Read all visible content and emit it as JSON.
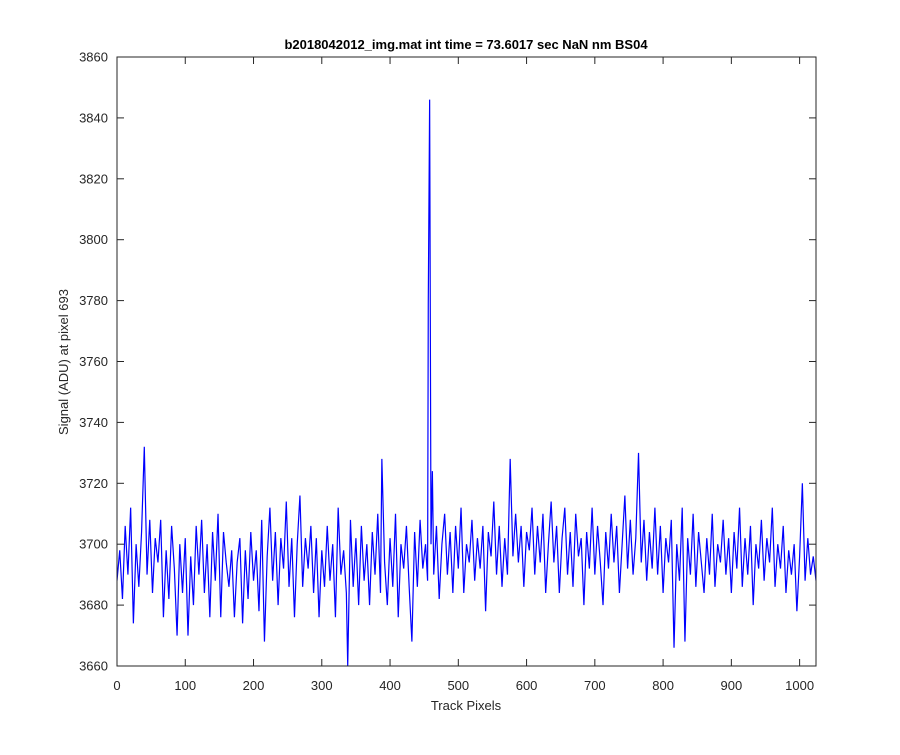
{
  "chart_data": {
    "type": "line",
    "title": "b2018042012_img.mat int time = 73.6017 sec  NaN nm BS04",
    "xlabel": "Track Pixels",
    "ylabel": "Signal (ADU) at pixel 693",
    "xlim": [
      0,
      1024
    ],
    "ylim": [
      3660,
      3860
    ],
    "xticks": [
      0,
      100,
      200,
      300,
      400,
      500,
      600,
      700,
      800,
      900,
      1000
    ],
    "yticks": [
      3660,
      3680,
      3700,
      3720,
      3740,
      3760,
      3780,
      3800,
      3820,
      3840,
      3860
    ],
    "grid": false,
    "legend": "none",
    "line_color": "#0000ff",
    "series": [
      {
        "points": [
          [
            0,
            3688
          ],
          [
            4,
            3698
          ],
          [
            8,
            3682
          ],
          [
            12,
            3706
          ],
          [
            16,
            3690
          ],
          [
            20,
            3712
          ],
          [
            24,
            3674
          ],
          [
            28,
            3700
          ],
          [
            32,
            3686
          ],
          [
            36,
            3704
          ],
          [
            40,
            3732
          ],
          [
            44,
            3690
          ],
          [
            48,
            3708
          ],
          [
            52,
            3684
          ],
          [
            56,
            3702
          ],
          [
            60,
            3694
          ],
          [
            64,
            3708
          ],
          [
            68,
            3676
          ],
          [
            72,
            3698
          ],
          [
            76,
            3682
          ],
          [
            80,
            3706
          ],
          [
            84,
            3692
          ],
          [
            88,
            3670
          ],
          [
            92,
            3700
          ],
          [
            96,
            3684
          ],
          [
            100,
            3702
          ],
          [
            104,
            3670
          ],
          [
            108,
            3696
          ],
          [
            112,
            3680
          ],
          [
            116,
            3706
          ],
          [
            120,
            3690
          ],
          [
            124,
            3708
          ],
          [
            128,
            3684
          ],
          [
            132,
            3700
          ],
          [
            136,
            3676
          ],
          [
            140,
            3704
          ],
          [
            144,
            3688
          ],
          [
            148,
            3710
          ],
          [
            152,
            3676
          ],
          [
            156,
            3704
          ],
          [
            160,
            3694
          ],
          [
            164,
            3686
          ],
          [
            168,
            3698
          ],
          [
            172,
            3676
          ],
          [
            176,
            3694
          ],
          [
            180,
            3702
          ],
          [
            184,
            3674
          ],
          [
            188,
            3698
          ],
          [
            192,
            3682
          ],
          [
            196,
            3704
          ],
          [
            200,
            3688
          ],
          [
            204,
            3698
          ],
          [
            208,
            3678
          ],
          [
            212,
            3708
          ],
          [
            216,
            3668
          ],
          [
            220,
            3696
          ],
          [
            224,
            3712
          ],
          [
            228,
            3688
          ],
          [
            232,
            3704
          ],
          [
            236,
            3680
          ],
          [
            240,
            3702
          ],
          [
            244,
            3692
          ],
          [
            248,
            3714
          ],
          [
            252,
            3686
          ],
          [
            256,
            3702
          ],
          [
            260,
            3676
          ],
          [
            264,
            3700
          ],
          [
            268,
            3716
          ],
          [
            272,
            3686
          ],
          [
            276,
            3702
          ],
          [
            280,
            3692
          ],
          [
            284,
            3706
          ],
          [
            288,
            3684
          ],
          [
            292,
            3702
          ],
          [
            296,
            3676
          ],
          [
            300,
            3698
          ],
          [
            304,
            3686
          ],
          [
            308,
            3706
          ],
          [
            312,
            3688
          ],
          [
            316,
            3700
          ],
          [
            320,
            3676
          ],
          [
            324,
            3712
          ],
          [
            328,
            3690
          ],
          [
            332,
            3698
          ],
          [
            336,
            3684
          ],
          [
            338,
            3660
          ],
          [
            342,
            3708
          ],
          [
            346,
            3686
          ],
          [
            350,
            3702
          ],
          [
            354,
            3680
          ],
          [
            358,
            3706
          ],
          [
            362,
            3688
          ],
          [
            366,
            3700
          ],
          [
            370,
            3680
          ],
          [
            374,
            3704
          ],
          [
            378,
            3690
          ],
          [
            382,
            3710
          ],
          [
            386,
            3684
          ],
          [
            388,
            3728
          ],
          [
            392,
            3694
          ],
          [
            396,
            3680
          ],
          [
            400,
            3702
          ],
          [
            404,
            3686
          ],
          [
            408,
            3710
          ],
          [
            412,
            3676
          ],
          [
            416,
            3700
          ],
          [
            420,
            3692
          ],
          [
            424,
            3706
          ],
          [
            428,
            3686
          ],
          [
            432,
            3668
          ],
          [
            436,
            3704
          ],
          [
            440,
            3686
          ],
          [
            444,
            3708
          ],
          [
            448,
            3692
          ],
          [
            452,
            3700
          ],
          [
            455,
            3688
          ],
          [
            456,
            3779
          ],
          [
            458,
            3846
          ],
          [
            460,
            3700
          ],
          [
            462,
            3724
          ],
          [
            464,
            3690
          ],
          [
            468,
            3706
          ],
          [
            472,
            3682
          ],
          [
            476,
            3700
          ],
          [
            480,
            3710
          ],
          [
            484,
            3690
          ],
          [
            488,
            3704
          ],
          [
            492,
            3684
          ],
          [
            496,
            3706
          ],
          [
            500,
            3692
          ],
          [
            504,
            3712
          ],
          [
            508,
            3684
          ],
          [
            512,
            3700
          ],
          [
            516,
            3694
          ],
          [
            520,
            3708
          ],
          [
            524,
            3688
          ],
          [
            528,
            3702
          ],
          [
            532,
            3692
          ],
          [
            536,
            3706
          ],
          [
            540,
            3678
          ],
          [
            544,
            3704
          ],
          [
            548,
            3696
          ],
          [
            552,
            3714
          ],
          [
            556,
            3690
          ],
          [
            560,
            3706
          ],
          [
            564,
            3686
          ],
          [
            568,
            3702
          ],
          [
            572,
            3690
          ],
          [
            576,
            3728
          ],
          [
            580,
            3696
          ],
          [
            584,
            3710
          ],
          [
            588,
            3694
          ],
          [
            592,
            3706
          ],
          [
            596,
            3686
          ],
          [
            600,
            3704
          ],
          [
            604,
            3698
          ],
          [
            608,
            3712
          ],
          [
            612,
            3690
          ],
          [
            616,
            3706
          ],
          [
            620,
            3694
          ],
          [
            624,
            3710
          ],
          [
            628,
            3684
          ],
          [
            632,
            3700
          ],
          [
            636,
            3714
          ],
          [
            640,
            3694
          ],
          [
            644,
            3706
          ],
          [
            648,
            3684
          ],
          [
            652,
            3702
          ],
          [
            656,
            3712
          ],
          [
            660,
            3690
          ],
          [
            664,
            3704
          ],
          [
            668,
            3686
          ],
          [
            672,
            3710
          ],
          [
            676,
            3696
          ],
          [
            680,
            3702
          ],
          [
            684,
            3680
          ],
          [
            688,
            3704
          ],
          [
            692,
            3692
          ],
          [
            696,
            3712
          ],
          [
            700,
            3690
          ],
          [
            704,
            3706
          ],
          [
            708,
            3694
          ],
          [
            712,
            3680
          ],
          [
            716,
            3704
          ],
          [
            720,
            3692
          ],
          [
            724,
            3710
          ],
          [
            728,
            3694
          ],
          [
            732,
            3706
          ],
          [
            736,
            3684
          ],
          [
            740,
            3700
          ],
          [
            744,
            3716
          ],
          [
            748,
            3692
          ],
          [
            752,
            3708
          ],
          [
            756,
            3690
          ],
          [
            760,
            3702
          ],
          [
            764,
            3730
          ],
          [
            768,
            3694
          ],
          [
            772,
            3708
          ],
          [
            776,
            3688
          ],
          [
            780,
            3704
          ],
          [
            784,
            3692
          ],
          [
            788,
            3712
          ],
          [
            792,
            3690
          ],
          [
            796,
            3706
          ],
          [
            800,
            3684
          ],
          [
            804,
            3702
          ],
          [
            808,
            3694
          ],
          [
            812,
            3708
          ],
          [
            816,
            3666
          ],
          [
            820,
            3700
          ],
          [
            824,
            3688
          ],
          [
            828,
            3712
          ],
          [
            832,
            3668
          ],
          [
            836,
            3702
          ],
          [
            840,
            3690
          ],
          [
            844,
            3710
          ],
          [
            848,
            3686
          ],
          [
            852,
            3704
          ],
          [
            856,
            3694
          ],
          [
            860,
            3684
          ],
          [
            864,
            3702
          ],
          [
            868,
            3690
          ],
          [
            872,
            3710
          ],
          [
            876,
            3686
          ],
          [
            880,
            3700
          ],
          [
            884,
            3694
          ],
          [
            888,
            3708
          ],
          [
            892,
            3690
          ],
          [
            896,
            3702
          ],
          [
            900,
            3684
          ],
          [
            904,
            3704
          ],
          [
            908,
            3692
          ],
          [
            912,
            3712
          ],
          [
            916,
            3686
          ],
          [
            920,
            3702
          ],
          [
            924,
            3690
          ],
          [
            928,
            3706
          ],
          [
            932,
            3680
          ],
          [
            936,
            3700
          ],
          [
            940,
            3692
          ],
          [
            944,
            3708
          ],
          [
            948,
            3688
          ],
          [
            952,
            3702
          ],
          [
            956,
            3694
          ],
          [
            960,
            3712
          ],
          [
            964,
            3686
          ],
          [
            968,
            3700
          ],
          [
            972,
            3692
          ],
          [
            976,
            3706
          ],
          [
            980,
            3684
          ],
          [
            984,
            3698
          ],
          [
            988,
            3690
          ],
          [
            992,
            3700
          ],
          [
            996,
            3678
          ],
          [
            1000,
            3696
          ],
          [
            1004,
            3720
          ],
          [
            1008,
            3688
          ],
          [
            1012,
            3702
          ],
          [
            1016,
            3690
          ],
          [
            1020,
            3696
          ],
          [
            1024,
            3688
          ]
        ]
      }
    ]
  }
}
